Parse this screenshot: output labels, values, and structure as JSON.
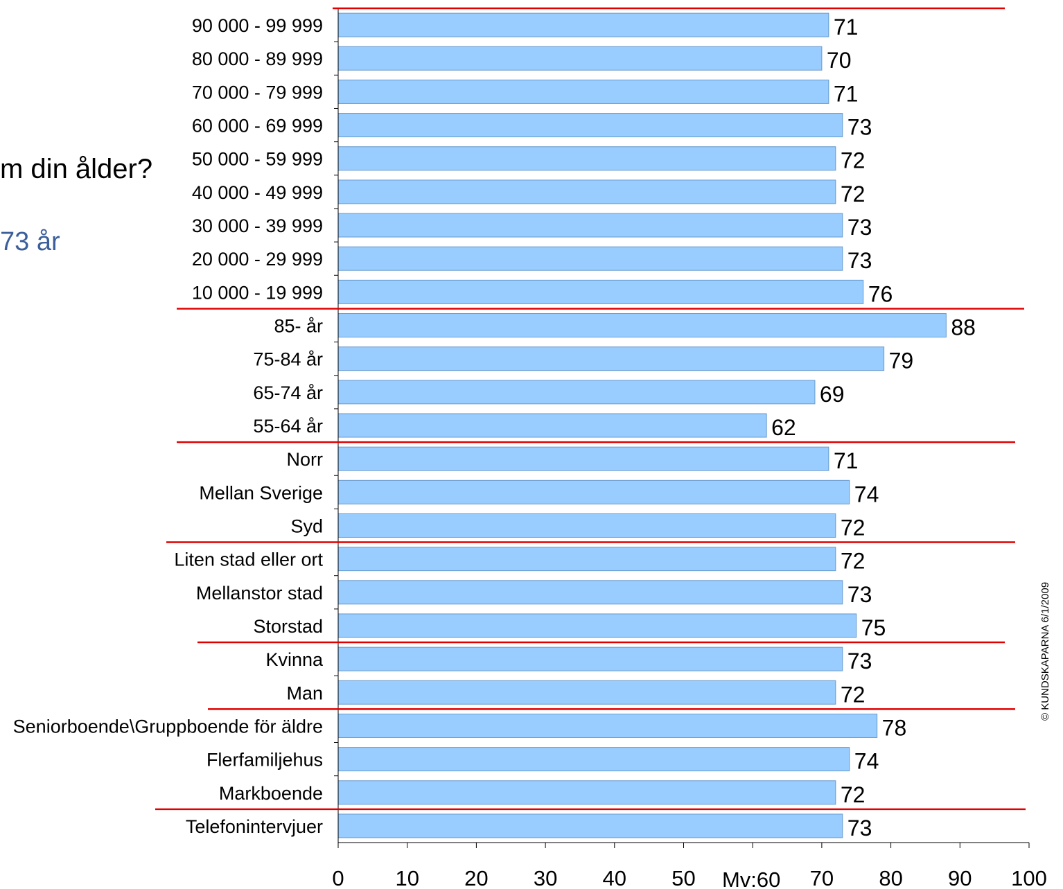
{
  "question_fragment": "m din ålder?",
  "answer_fragment": "73 år",
  "copyright": "© KUNDSKAPARNA 6/1/2009",
  "colors": {
    "bar": "#99ccff",
    "bar_border": "#6699cc",
    "separator": "#e00000",
    "axis": "#000000",
    "answer_text": "#3a5f9a"
  },
  "chart_data": {
    "type": "bar",
    "orientation": "horizontal",
    "categories": [
      "90 000 - 99 999",
      "80 000 - 89 999",
      "70 000 - 79 999",
      "60 000 - 69 999",
      "50 000 - 59 999",
      "40 000 - 49 999",
      "30 000 - 39 999",
      "20 000 - 29 999",
      "10 000 - 19 999",
      "85- år",
      "75-84 år",
      "65-74 år",
      "55-64 år",
      "Norr",
      "Mellan Sverige",
      "Syd",
      "Liten stad eller ort",
      "Mellanstor stad",
      "Storstad",
      "Kvinna",
      "Man",
      "Seniorboende\\Gruppboende för äldre",
      "Flerfamiljehus",
      "Markboende",
      "Telefonintervjuer"
    ],
    "values": [
      71,
      70,
      71,
      73,
      72,
      72,
      73,
      73,
      76,
      88,
      79,
      69,
      62,
      71,
      74,
      72,
      72,
      73,
      75,
      73,
      72,
      78,
      74,
      72,
      73
    ],
    "group_separators_after": [
      8,
      12,
      15,
      18,
      20,
      23
    ],
    "xlim": [
      0,
      100
    ],
    "xticks": [
      "0",
      "10",
      "20",
      "30",
      "40",
      "50",
      "70",
      "80",
      "90",
      "100"
    ],
    "mean_label": "Mv:60",
    "grid": false
  }
}
